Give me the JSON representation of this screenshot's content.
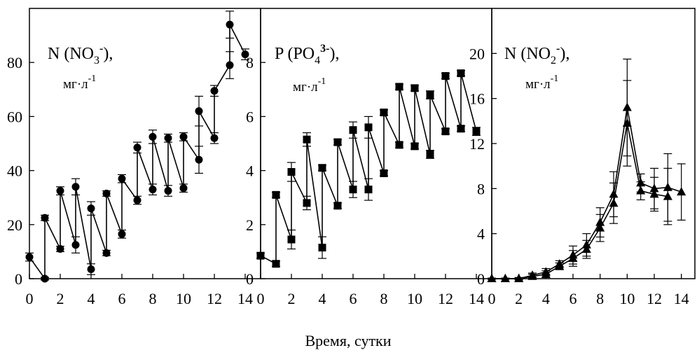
{
  "figure": {
    "xlabel": "Время, сутки"
  },
  "chart_data": [
    {
      "type": "line",
      "panel_label": {
        "main": "N (NO",
        "sub": "3",
        "sup": "-",
        "tail": "),",
        "unit": "мг·л",
        "unit_sup": "-1"
      },
      "marker": "circle",
      "xlim": [
        0,
        15
      ],
      "ylim": [
        0,
        100
      ],
      "xticks": [
        0,
        2,
        4,
        6,
        8,
        10,
        12,
        14
      ],
      "yticks": [
        0,
        20,
        40,
        60,
        80
      ],
      "x": [
        0,
        1,
        1,
        2,
        2,
        3,
        3,
        4,
        4,
        5,
        5,
        6,
        6,
        7,
        7,
        8,
        8,
        9,
        9,
        10,
        10,
        11,
        11,
        12,
        12,
        13,
        13,
        14
      ],
      "y": [
        8,
        0,
        22.5,
        11,
        32.5,
        12.5,
        34,
        3.5,
        26,
        9.5,
        31.5,
        16.5,
        37,
        29,
        48.5,
        33,
        52.5,
        32.5,
        52,
        33.5,
        52.5,
        44,
        62,
        52,
        69.5,
        79,
        94,
        83
      ],
      "err": [
        1.5,
        0.5,
        1,
        1,
        1.5,
        3,
        3,
        2,
        2.5,
        1,
        1,
        1.5,
        1.5,
        1.5,
        2,
        2,
        2.5,
        2,
        1.5,
        1.5,
        1.5,
        5,
        5.5,
        2,
        2,
        5,
        5,
        2
      ]
    },
    {
      "type": "line",
      "panel_label": {
        "main": "P (PO",
        "sub": "4",
        "sup": "3-",
        "tail": "),",
        "unit": "мг·л",
        "unit_sup": "-1"
      },
      "marker": "square",
      "xlim": [
        0,
        15
      ],
      "ylim": [
        0,
        10
      ],
      "xticks": [
        0,
        2,
        4,
        6,
        8,
        10,
        12,
        14
      ],
      "yticks": [
        0,
        2,
        4,
        6,
        8
      ],
      "x": [
        0,
        1,
        1,
        2,
        2,
        3,
        3,
        4,
        4,
        5,
        5,
        6,
        6,
        7,
        7,
        8,
        8,
        9,
        9,
        10,
        10,
        11,
        11,
        12,
        12,
        13,
        13,
        14
      ],
      "y": [
        0.85,
        0.55,
        3.1,
        1.45,
        3.95,
        2.8,
        5.15,
        1.15,
        4.1,
        2.7,
        5.05,
        3.3,
        5.5,
        3.3,
        5.6,
        3.9,
        6.15,
        4.95,
        7.1,
        4.9,
        7.05,
        4.6,
        6.8,
        5.45,
        7.5,
        5.55,
        7.6,
        5.45
      ],
      "err": [
        0.1,
        0.1,
        0.1,
        0.35,
        0.35,
        0.25,
        0.25,
        0.4,
        0.1,
        0.1,
        0.1,
        0.3,
        0.3,
        0.4,
        0.4,
        0.1,
        0.1,
        0.1,
        0.1,
        0.1,
        0.1,
        0.15,
        0.15,
        0.1,
        0.1,
        0.1,
        0.1,
        0.15
      ]
    },
    {
      "type": "line",
      "panel_label": {
        "main": "N (NO",
        "sub": "2",
        "sup": "-",
        "tail": "),",
        "unit": "мг·л",
        "unit_sup": "-1"
      },
      "marker": "triangle",
      "xlim": [
        0,
        15
      ],
      "ylim": [
        0,
        24
      ],
      "xticks": [
        0,
        2,
        4,
        6,
        8,
        10,
        12,
        14
      ],
      "yticks": [
        0,
        4,
        8,
        12,
        16,
        20
      ],
      "series": [
        {
          "x": [
            0,
            1,
            2,
            3,
            4,
            5,
            6,
            7,
            8,
            9,
            10,
            11,
            12,
            13,
            14
          ],
          "y": [
            0,
            0,
            0,
            0.3,
            0.6,
            1.3,
            2.1,
            3,
            5,
            7.5,
            15.2,
            8.5,
            8,
            8.1,
            7.7
          ],
          "err": [
            0.05,
            0.05,
            0.1,
            0.2,
            0.3,
            0.3,
            0.8,
            1,
            1.3,
            2,
            4.3,
            0.8,
            1.8,
            3,
            2.5
          ]
        },
        {
          "x": [
            0,
            1,
            2,
            3,
            4,
            5,
            6,
            7,
            8,
            9,
            10,
            11,
            12,
            13
          ],
          "y": [
            0,
            0,
            0,
            0.2,
            0.4,
            1.1,
            1.8,
            2.6,
            4.5,
            6.7,
            13.8,
            7.8,
            7.5,
            7.3
          ],
          "err": [
            0.05,
            0.05,
            0.1,
            0.2,
            0.3,
            0.3,
            0.7,
            0.8,
            1.2,
            1.8,
            3.8,
            0.8,
            1.5,
            2.5
          ]
        }
      ]
    }
  ]
}
